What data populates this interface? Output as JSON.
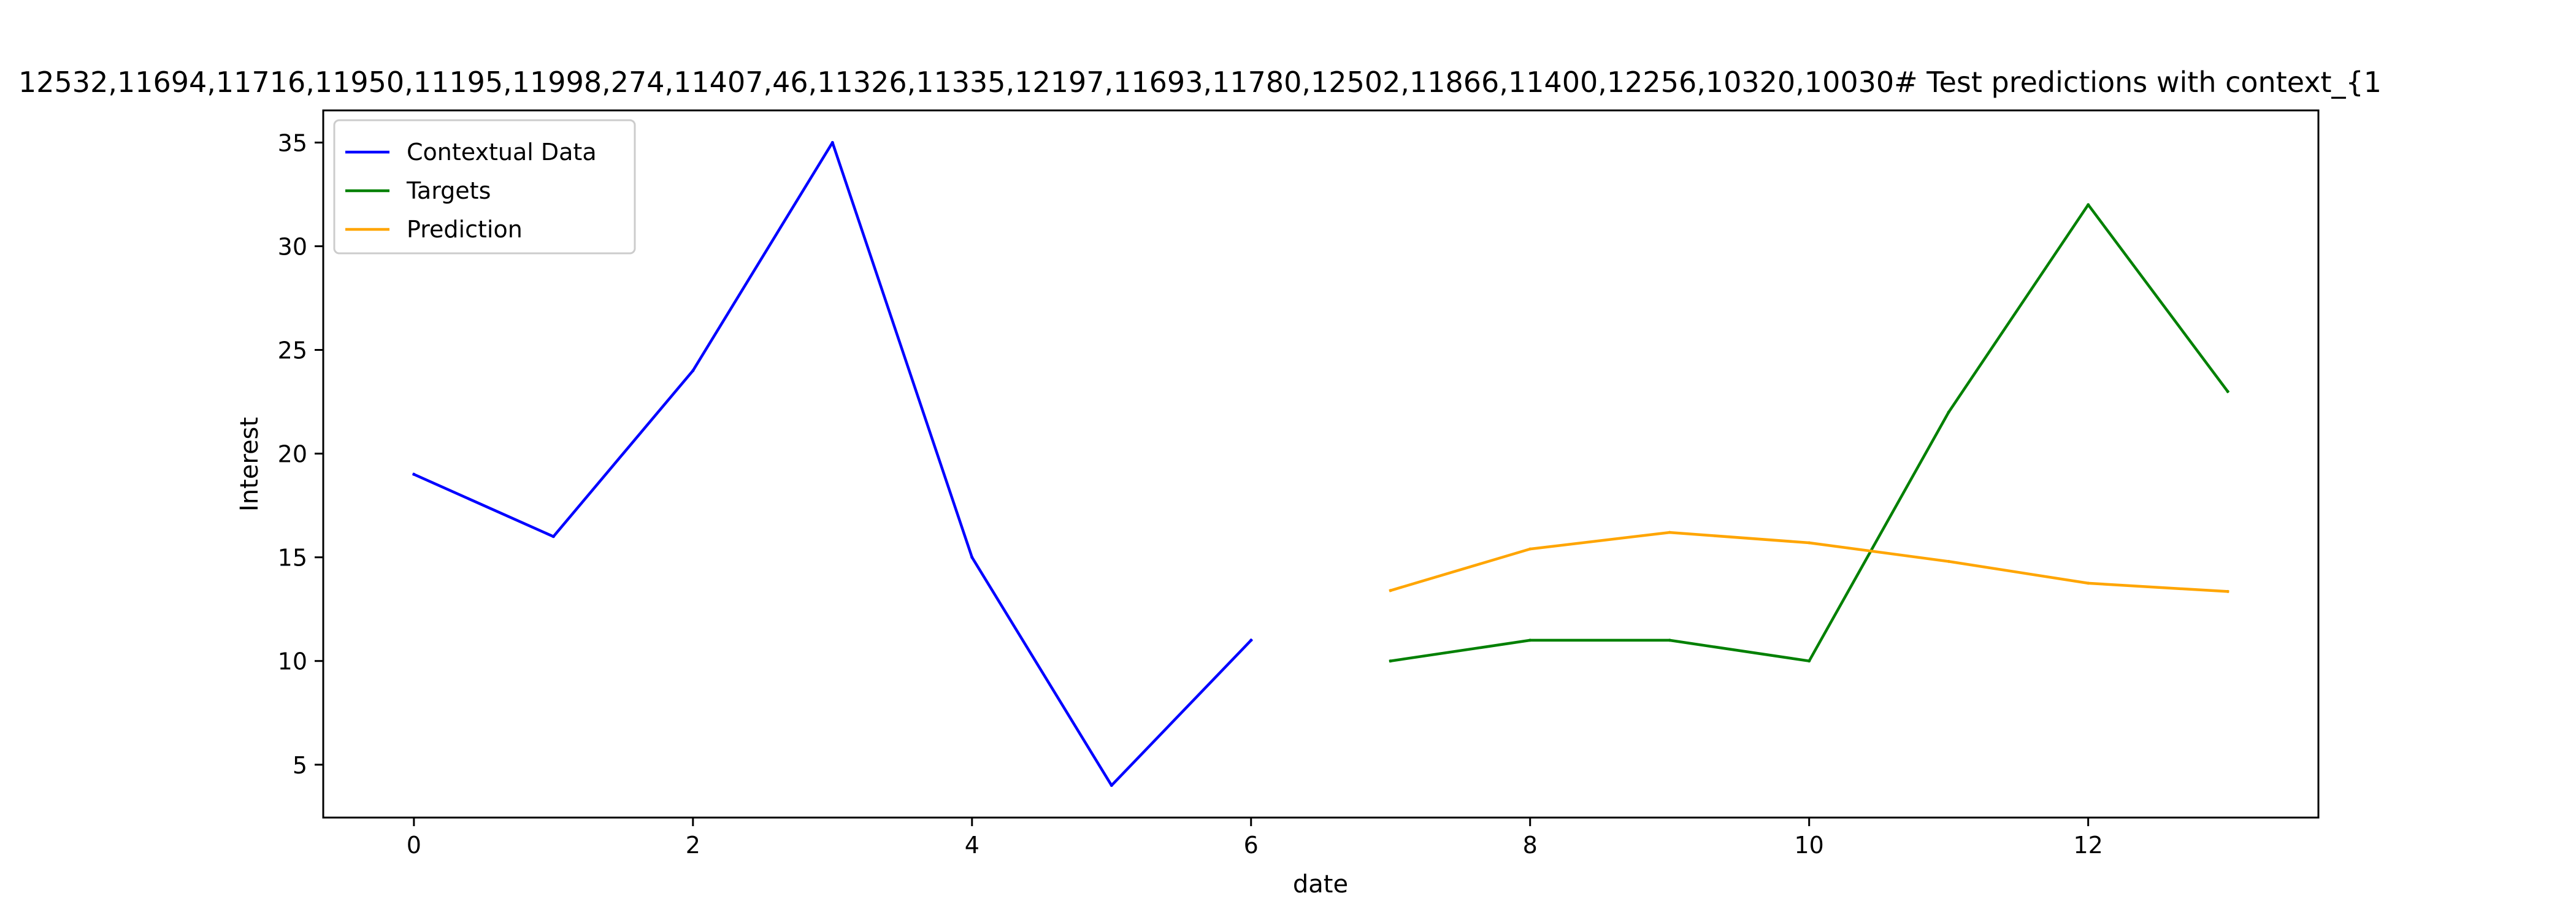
{
  "chart_data": {
    "type": "line",
    "title": "12532,11694,11716,11950,11195,11998,274,11407,46,11326,11335,12197,11693,11780,12502,11866,11400,12256,10320,10030# Test predictions with context_{1",
    "xlabel": "date",
    "ylabel": "Interest",
    "xlim": [
      -0.65,
      13.65
    ],
    "ylim": [
      2.45,
      36.55
    ],
    "xticks": [
      0,
      2,
      4,
      6,
      8,
      10,
      12
    ],
    "yticks": [
      5,
      10,
      15,
      20,
      25,
      30,
      35
    ],
    "grid": false,
    "legend": {
      "location": "upper left"
    },
    "series": [
      {
        "name": "Contextual Data",
        "color": "#0000ff",
        "x": [
          0,
          1,
          2,
          3,
          4,
          5,
          6
        ],
        "y": [
          19,
          16,
          24,
          35,
          15,
          4,
          11
        ]
      },
      {
        "name": "Targets",
        "color": "#008000",
        "x": [
          7,
          8,
          9,
          10,
          11,
          12,
          13
        ],
        "y": [
          10,
          11,
          11,
          10,
          22,
          32,
          23
        ]
      },
      {
        "name": "Prediction",
        "color": "#ffa500",
        "x": [
          7,
          8,
          9,
          10,
          11,
          12,
          13
        ],
        "y": [
          13.4,
          15.4,
          16.2,
          15.7,
          14.8,
          13.75,
          13.35
        ]
      }
    ]
  }
}
